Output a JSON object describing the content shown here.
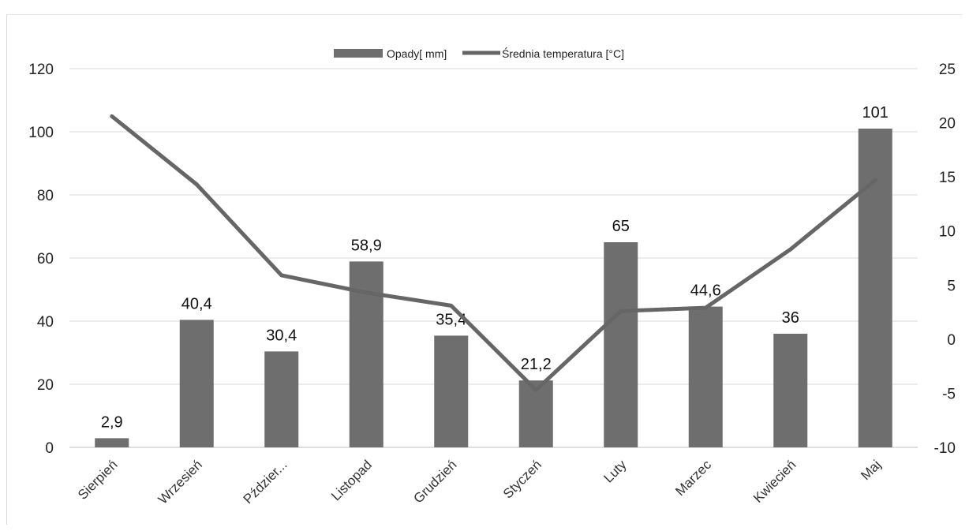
{
  "chart_data": {
    "type": "bar",
    "categories": [
      "Sierpień",
      "Wrzesień",
      "Październik",
      "Listopad",
      "Grudzień",
      "Styczeń",
      "Luty",
      "Marzec",
      "Kwiecień",
      "Maj"
    ],
    "category_labels": [
      "Sierpień",
      "Wrzesień",
      "Pździer...",
      "Listopad",
      "Grudzień",
      "Styczeń",
      "Luty",
      "Marzec",
      "Kwiecień",
      "Maj"
    ],
    "series": [
      {
        "name": "Opady[ mm]",
        "type": "bar",
        "axis": "left",
        "color": "#6e6e6e",
        "values": [
          2.9,
          40.4,
          30.4,
          58.9,
          35.4,
          21.2,
          65,
          44.6,
          36,
          101
        ],
        "data_labels": [
          "2,9",
          "40,4",
          "30,4",
          "58,9",
          "35,4",
          "21,2",
          "65",
          "44,6",
          "36",
          "101"
        ]
      },
      {
        "name": "Średnia temperatura [°C]",
        "type": "line",
        "axis": "right",
        "color": "#666666",
        "values": [
          20.6,
          14.3,
          5.9,
          4.3,
          3.1,
          -4.7,
          2.6,
          2.9,
          8.3,
          14.7
        ]
      }
    ],
    "y_left": {
      "min": 0,
      "max": 120,
      "ticks": [
        0,
        20,
        40,
        60,
        80,
        100,
        120
      ],
      "tick_labels": [
        "0",
        "20",
        "40",
        "60",
        "80",
        "100",
        "120"
      ]
    },
    "y_right": {
      "min": -10,
      "max": 25,
      "ticks": [
        -10,
        -5,
        0,
        5,
        10,
        15,
        20,
        25
      ],
      "tick_labels": [
        "-10",
        "-5",
        "0",
        "5",
        "10",
        "15",
        "20",
        "25"
      ]
    },
    "title": "",
    "xlabel": "",
    "ylabel": "",
    "grid": true,
    "legend_position": "top-center"
  }
}
